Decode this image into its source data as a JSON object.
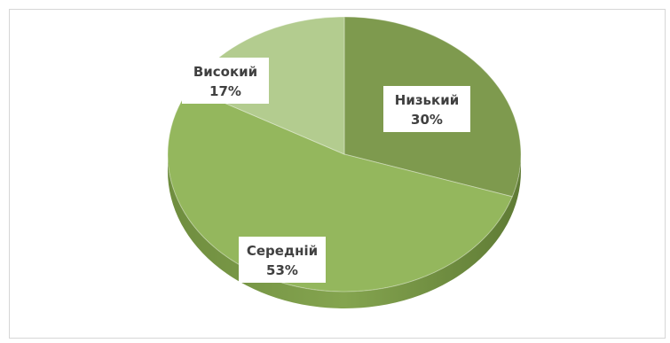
{
  "chart_data": {
    "type": "pie",
    "style": "3d",
    "title": "",
    "legend": "none",
    "categories": [
      "Низький",
      "Середній",
      "Високий"
    ],
    "values": [
      30,
      53,
      17
    ],
    "labels": [
      {
        "name": "Низький",
        "value": "30%"
      },
      {
        "name": "Середній",
        "value": "53%"
      },
      {
        "name": "Високий",
        "value": "17%"
      }
    ],
    "colors": [
      "#7e9a4e",
      "#94b75d",
      "#b3cc8f"
    ]
  }
}
